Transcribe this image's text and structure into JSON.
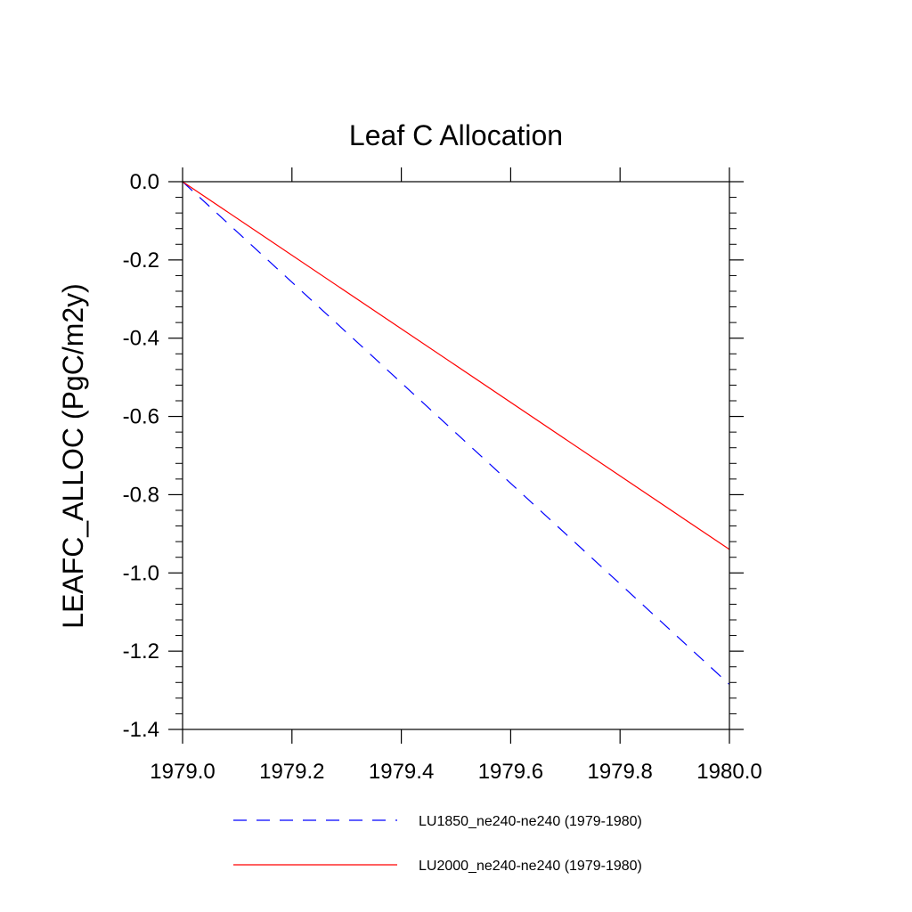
{
  "chart_data": {
    "type": "line",
    "title": "Leaf C Allocation",
    "xlabel": "",
    "ylabel": "LEAFC_ALLOC  (PgC/m2y)",
    "xlim": [
      1979.0,
      1980.0
    ],
    "ylim": [
      -1.4,
      0.0
    ],
    "xticks": [
      1979.0,
      1979.2,
      1979.4,
      1979.6,
      1979.8,
      1980.0
    ],
    "xtick_labels": [
      "1979.0",
      "1979.2",
      "1979.4",
      "1979.6",
      "1979.8",
      "1980.0"
    ],
    "yticks": [
      0.0,
      -0.2,
      -0.4,
      -0.6,
      -0.8,
      -1.0,
      -1.2,
      -1.4
    ],
    "ytick_labels": [
      "0.0",
      "-0.2",
      "-0.4",
      "-0.6",
      "-0.8",
      "-1.0",
      "-1.2",
      "-1.4"
    ],
    "grid": false,
    "legend_position": "bottom",
    "series": [
      {
        "name": "LU1850_ne240-ne240 (1979-1980)",
        "x": [
          1979.0,
          1980.0
        ],
        "values": [
          0.0,
          -1.285
        ],
        "color": "#0000ff",
        "dash": "dashed"
      },
      {
        "name": "LU2000_ne240-ne240 (1979-1980)",
        "x": [
          1979.0,
          1980.0
        ],
        "values": [
          0.0,
          -0.94
        ],
        "color": "#ff0000",
        "dash": "solid"
      }
    ]
  }
}
